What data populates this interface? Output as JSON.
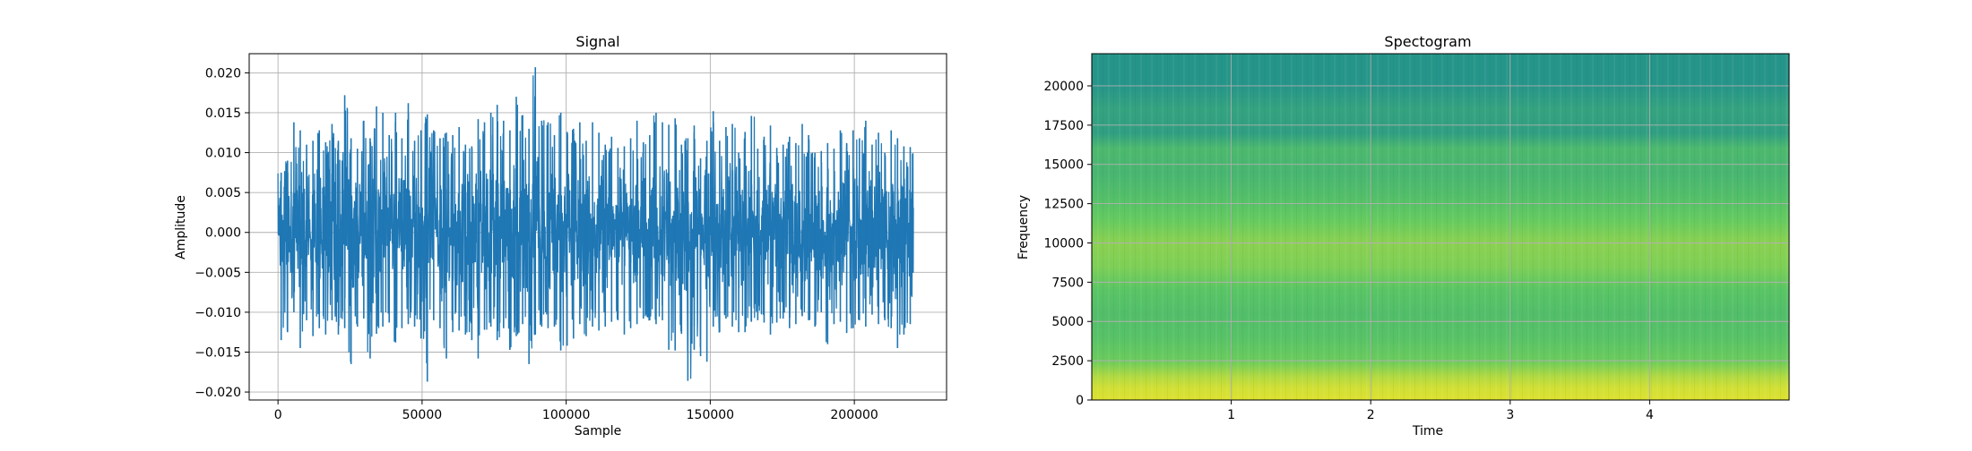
{
  "chart_data": [
    {
      "type": "line",
      "title": "Signal",
      "xlabel": "Sample",
      "ylabel": "Amplitude",
      "xlim": [
        -10000,
        232000
      ],
      "ylim": [
        -0.021,
        0.0224
      ],
      "xticks": [
        0,
        50000,
        100000,
        150000,
        200000
      ],
      "xtick_labels": [
        "0",
        "50000",
        "100000",
        "150000",
        "200000"
      ],
      "yticks": [
        -0.02,
        -0.015,
        -0.01,
        -0.005,
        0.0,
        0.005,
        0.01,
        0.015,
        0.02
      ],
      "ytick_labels": [
        "−0.020",
        "−0.015",
        "−0.010",
        "−0.005",
        "0.000",
        "0.005",
        "0.010",
        "0.015",
        "0.020"
      ],
      "grid": true,
      "series": [
        {
          "color": "#1f77b4",
          "x_start": 0,
          "x_end": 220500,
          "envelope_upper": [
            0.0075,
            0.009,
            0.0138,
            0.0128,
            0.011,
            0.0115,
            0.0128,
            0.0113,
            0.0136,
            0.0115,
            0.0172,
            0.0118,
            0.0105,
            0.014,
            0.0118,
            0.0158,
            0.015,
            0.0122,
            0.015,
            0.0118,
            0.0162,
            0.0115,
            0.0128,
            0.0148,
            0.0128,
            0.0118,
            0.0125,
            0.0122,
            0.0132,
            0.011,
            0.0108,
            0.0142,
            0.0138,
            0.015,
            0.016,
            0.014,
            0.0128,
            0.017,
            0.0147,
            0.013,
            0.0207,
            0.014,
            0.0138,
            0.0122,
            0.015,
            0.0126,
            0.013,
            0.0138,
            0.0115,
            0.0138,
            0.0125,
            0.011,
            0.012,
            0.0106,
            0.0108,
            0.0118,
            0.014,
            0.0113,
            0.0122,
            0.015,
            0.0138,
            0.0135,
            0.0143,
            0.011,
            0.0118,
            0.0134,
            0.0093,
            0.0115,
            0.0152,
            0.0115,
            0.0132,
            0.0136,
            0.01,
            0.0126,
            0.0146,
            0.0105,
            0.012,
            0.0134,
            0.0106,
            0.011,
            0.012,
            0.0112,
            0.0136,
            0.0122,
            0.01,
            0.0102,
            0.0112,
            0.0105,
            0.0128,
            0.0112,
            0.0128,
            0.0118,
            0.014,
            0.011,
            0.0125,
            0.01,
            0.0128,
            0.0118,
            0.0108,
            0.0107
          ],
          "envelope_lower": [
            -0.0135,
            -0.0125,
            -0.01,
            -0.0145,
            -0.011,
            -0.013,
            -0.012,
            -0.0128,
            -0.011,
            -0.0128,
            -0.012,
            -0.0165,
            -0.0118,
            -0.0108,
            -0.0158,
            -0.0127,
            -0.0118,
            -0.0113,
            -0.0138,
            -0.012,
            -0.0115,
            -0.0118,
            -0.0133,
            -0.0187,
            -0.011,
            -0.012,
            -0.0158,
            -0.0125,
            -0.0123,
            -0.0128,
            -0.0135,
            -0.0158,
            -0.0122,
            -0.0118,
            -0.0135,
            -0.012,
            -0.0147,
            -0.013,
            -0.0115,
            -0.0165,
            -0.0128,
            -0.0118,
            -0.012,
            -0.0118,
            -0.0148,
            -0.0142,
            -0.0133,
            -0.0115,
            -0.013,
            -0.0118,
            -0.0123,
            -0.0118,
            -0.0112,
            -0.011,
            -0.0128,
            -0.012,
            -0.0115,
            -0.0108,
            -0.011,
            -0.0115,
            -0.011,
            -0.0147,
            -0.0148,
            -0.0127,
            -0.0186,
            -0.0147,
            -0.0155,
            -0.0162,
            -0.0118,
            -0.0125,
            -0.0108,
            -0.0118,
            -0.0125,
            -0.0125,
            -0.0112,
            -0.011,
            -0.0113,
            -0.0128,
            -0.0113,
            -0.0108,
            -0.012,
            -0.0115,
            -0.0105,
            -0.011,
            -0.0118,
            -0.01,
            -0.014,
            -0.0115,
            -0.0112,
            -0.0126,
            -0.012,
            -0.011,
            -0.0118,
            -0.0103,
            -0.0115,
            -0.011,
            -0.012,
            -0.0145,
            -0.0128,
            -0.0115
          ]
        }
      ]
    },
    {
      "type": "heatmap",
      "title": "Spectogram",
      "xlabel": "Time",
      "ylabel": "Frequency",
      "xlim": [
        0.0,
        5.0
      ],
      "ylim": [
        0,
        22050
      ],
      "xticks": [
        1,
        2,
        3,
        4
      ],
      "xtick_labels": [
        "1",
        "2",
        "3",
        "4"
      ],
      "yticks": [
        0,
        2500,
        5000,
        7500,
        10000,
        12500,
        15000,
        17500,
        20000
      ],
      "ytick_labels": [
        "0",
        "2500",
        "5000",
        "7500",
        "10000",
        "12500",
        "15000",
        "17500",
        "20000"
      ],
      "grid": true,
      "colormap": "viridis",
      "band_frequencies": [
        0,
        800,
        1500,
        2500,
        4000,
        5500,
        7000,
        8500,
        10000,
        11500,
        13000,
        14500,
        16000,
        17000,
        18500,
        20000,
        22050
      ],
      "band_levels": [
        0.95,
        0.93,
        0.88,
        0.77,
        0.72,
        0.7,
        0.73,
        0.8,
        0.82,
        0.76,
        0.7,
        0.66,
        0.68,
        0.56,
        0.58,
        0.52,
        0.52
      ]
    }
  ]
}
